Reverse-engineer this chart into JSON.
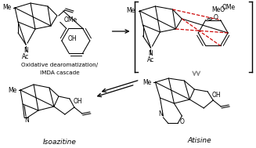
{
  "background_color": "#ffffff",
  "text_color": "#000000",
  "red_color": "#cc0000",
  "gray_color": "#888888",
  "label_oxidative": "Oxidative dearomatization/",
  "label_imda": "IMDA cascade",
  "label_isoazitine": "Isoazitine",
  "label_atisine": "Atisine",
  "label_me": "Me",
  "label_ac": "Ac",
  "label_n": "N",
  "label_ome": "OMe",
  "label_oh": "OH",
  "label_meo": "MeO",
  "label_o": "O",
  "fs": 5.5,
  "fs_name": 6.5,
  "lw": 0.75
}
